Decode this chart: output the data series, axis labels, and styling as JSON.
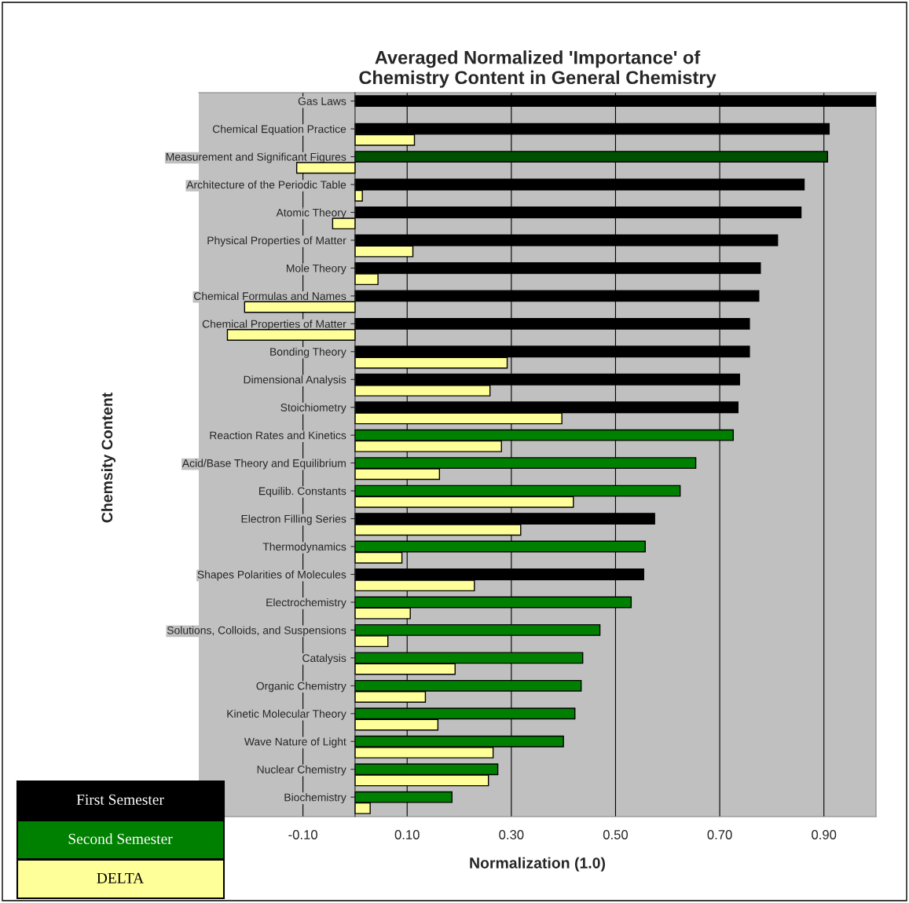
{
  "chart_data": {
    "type": "bar",
    "orientation": "horizontal",
    "title": "Averaged Normalized 'Importance' of\nChemistry Content in General Chemistry",
    "xlabel": "Normalization (1.0)",
    "ylabel": "Chemsity Content",
    "categories": [
      "Gas Laws",
      "Chemical Equation Practice",
      "Measurement and Significant Figures",
      "Architecture of the Periodic Table",
      "Atomic Theory",
      "Physical Properties of Matter",
      "Mole Theory",
      "Chemical Formulas and Names",
      "Chemical Properties of Matter",
      "Bonding Theory",
      "Dimensional Analysis",
      "Stoichiometry",
      "Reaction Rates and Kinetics",
      "Acid/Base Theory and Equilibrium",
      "Equilib. Constants",
      "Electron Filling Series",
      "Thermodynamics",
      "Shapes Polarities of Molecules",
      "Electrochemistry",
      "Solutions, Colloids, and Suspensions",
      "Catalysis",
      "Organic Chemistry",
      "Kinetic Molecular Theory",
      "Wave Nature of Light",
      "Nuclear Chemistry",
      "Biochemistry"
    ],
    "series": [
      {
        "name": "First Semester",
        "color": "#000000",
        "values": [
          1.0,
          0.91,
          null,
          0.862,
          0.856,
          0.811,
          0.778,
          0.775,
          0.757,
          0.757,
          0.738,
          0.735,
          null,
          null,
          null,
          0.575,
          null,
          0.554,
          null,
          null,
          null,
          null,
          null,
          null,
          null,
          null
        ]
      },
      {
        "name": "Second Semester",
        "color": "#008000",
        "colors": [
          "#008000",
          "#008000",
          "#005000",
          "#008000",
          "#008000",
          "#008000",
          "#008000",
          "#008000",
          "#008000",
          "#008000",
          "#008000",
          "#008000",
          "#008000",
          "#008000",
          "#008000",
          "#008000",
          "#008000",
          "#008000",
          "#008000",
          "#008000",
          "#008000",
          "#008000",
          "#008000",
          "#008000",
          "#008000",
          "#008000"
        ],
        "values": [
          null,
          null,
          0.907,
          null,
          null,
          null,
          null,
          null,
          null,
          null,
          null,
          null,
          0.726,
          0.654,
          0.624,
          null,
          0.557,
          null,
          0.53,
          0.47,
          0.437,
          0.434,
          0.422,
          0.4,
          0.274,
          0.186
        ]
      },
      {
        "name": "DELTA",
        "color": "#ffff99",
        "values": [
          null,
          0.114,
          -0.112,
          0.014,
          -0.043,
          0.111,
          0.044,
          -0.212,
          -0.245,
          0.292,
          0.259,
          0.397,
          0.281,
          0.162,
          0.419,
          0.318,
          0.09,
          0.229,
          0.106,
          0.063,
          0.192,
          0.135,
          0.159,
          0.265,
          0.256,
          0.029
        ]
      }
    ],
    "xlim": [
      -0.3,
      1.0
    ],
    "xticks": [
      {
        "value": -0.1,
        "label": "-0.10"
      },
      {
        "value": 0.1,
        "label": "0.10"
      },
      {
        "value": 0.3,
        "label": "0.30"
      },
      {
        "value": 0.5,
        "label": "0.50"
      },
      {
        "value": 0.7,
        "label": "0.70"
      },
      {
        "value": 0.9,
        "label": "0.90"
      }
    ],
    "grid": "x",
    "legend": "bottom left"
  }
}
